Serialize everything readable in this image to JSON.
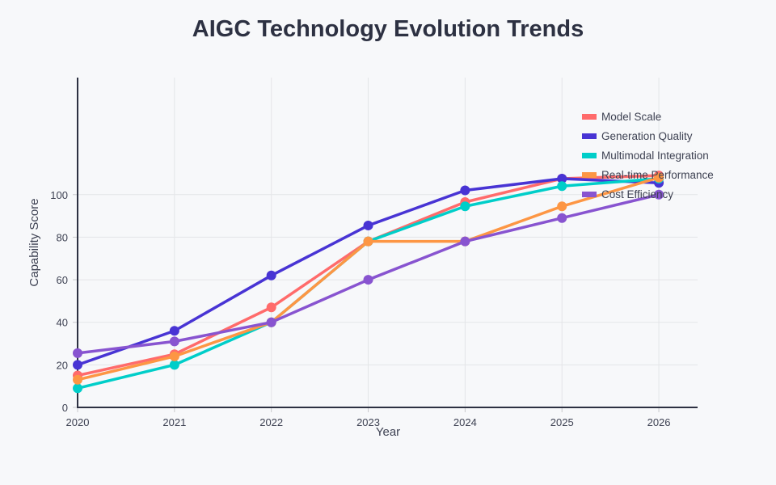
{
  "chart_data": {
    "type": "line",
    "title": "AIGC Technology Evolution Trends",
    "xlabel": "Year",
    "ylabel": "Capability Score",
    "x": [
      2020,
      2021,
      2022,
      2023,
      2024,
      2025,
      2026
    ],
    "x_tick_labels": [
      "2020",
      "2021",
      "2022",
      "2023",
      "2024",
      "2025",
      "2026"
    ],
    "y_ticks": [
      0,
      20,
      40,
      60,
      80,
      100
    ],
    "y_tick_labels": [
      "0",
      "20",
      "40",
      "60",
      "80",
      "100"
    ],
    "xlim": [
      2020,
      2026.4
    ],
    "ylim": [
      0,
      155
    ],
    "grid": true,
    "legend_position": "top-right",
    "series": [
      {
        "name": "Model Scale",
        "color": "#ff6b6b",
        "values": [
          15,
          25,
          47,
          78,
          96.5,
          107.5,
          109
        ]
      },
      {
        "name": "Generation Quality",
        "color": "#4834d4",
        "values": [
          20,
          36,
          62,
          85.5,
          102,
          107.5,
          105.5
        ]
      },
      {
        "name": "Multimodal Integration",
        "color": "#00cec9",
        "values": [
          9,
          20,
          40,
          78,
          94.5,
          104,
          107.5
        ]
      },
      {
        "name": "Real-time Performance",
        "color": "#fd9644",
        "values": [
          13,
          24,
          40,
          78,
          78,
          94.5,
          108
        ]
      },
      {
        "name": "Cost Efficiency",
        "color": "#8854d0",
        "values": [
          25.5,
          31,
          40,
          60,
          78,
          89,
          100
        ]
      }
    ]
  }
}
